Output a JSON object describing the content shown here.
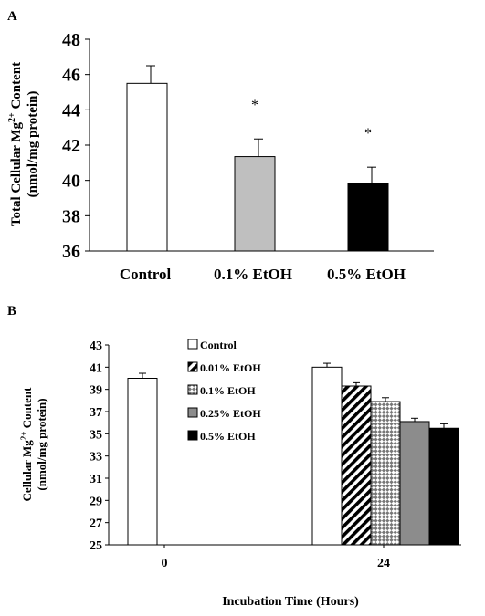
{
  "chart_data": [
    {
      "panel_label": "A",
      "type": "bar",
      "ylabel_line1": "Total Cellular Mg",
      "ylabel_sup": "2+",
      "ylabel_line1_suffix": " Content",
      "ylabel_line2": "(nmol/mg protein)",
      "ylim": [
        36,
        48
      ],
      "yticks": [
        36,
        38,
        40,
        42,
        44,
        46,
        48
      ],
      "categories": [
        "Control",
        "0.1%  EtOH",
        "0.5% EtOH"
      ],
      "values": [
        45.5,
        41.35,
        39.85
      ],
      "errors": [
        1.0,
        1.0,
        0.9
      ],
      "significance": [
        "",
        "*",
        "*"
      ],
      "colors": [
        "#ffffff",
        "#bfbfbf",
        "#000000"
      ]
    },
    {
      "panel_label": "B",
      "type": "bar",
      "ylabel_line1": "Cellular Mg",
      "ylabel_sup": "2+",
      "ylabel_line1_suffix": " Content",
      "ylabel_line2": "(nmol/mg protein)",
      "xlabel": "Incubation Time (Hours)",
      "ylim": [
        25,
        43
      ],
      "yticks": [
        25,
        27,
        29,
        31,
        33,
        35,
        37,
        39,
        41,
        43
      ],
      "categories": [
        "0",
        "24"
      ],
      "legend_position": "top-center",
      "series": [
        {
          "name": "Control",
          "pattern": "white",
          "values": [
            40.0,
            41.0
          ],
          "errors": [
            0.45,
            0.35
          ]
        },
        {
          "name": "0.01% EtOH",
          "pattern": "diagonal",
          "values": [
            null,
            39.3
          ],
          "errors": [
            null,
            0.3
          ]
        },
        {
          "name": "0.1% EtOH",
          "pattern": "checker",
          "values": [
            null,
            37.9
          ],
          "errors": [
            null,
            0.35
          ]
        },
        {
          "name": "0.25% EtOH",
          "pattern": "gray",
          "values": [
            null,
            36.1
          ],
          "errors": [
            null,
            0.3
          ]
        },
        {
          "name": "0.5% EtOH",
          "pattern": "black",
          "values": [
            null,
            35.5
          ],
          "errors": [
            null,
            0.4
          ]
        }
      ]
    }
  ]
}
